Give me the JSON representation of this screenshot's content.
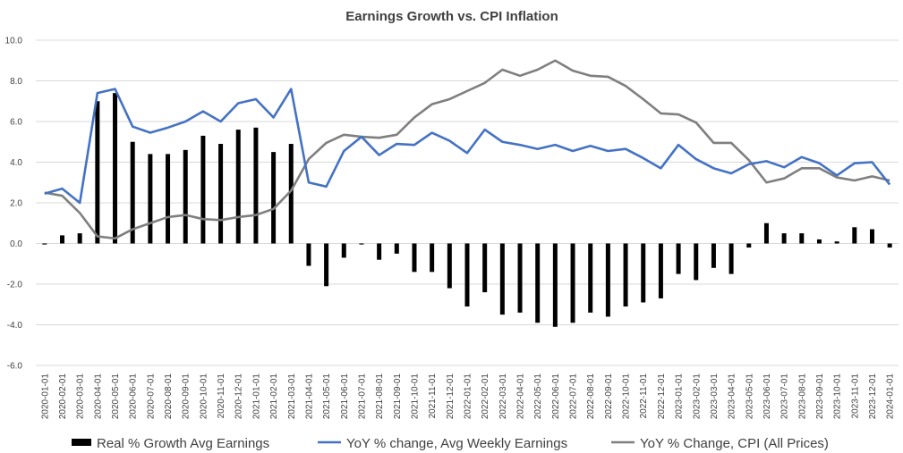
{
  "chart_data": {
    "type": "bar+line",
    "title": "Earnings Growth vs. CPI Inflation",
    "xlabel": "",
    "ylabel": "",
    "ylim": [
      -6.0,
      10.0
    ],
    "yticks": [
      "10.0",
      "8.0",
      "6.0",
      "4.0",
      "2.0",
      "0.0",
      "-2.0",
      "-4.0",
      "-6.0"
    ],
    "grid": true,
    "legend_position": "bottom",
    "categories": [
      "2020-01-01",
      "2020-02-01",
      "2020-03-01",
      "2020-04-01",
      "2020-05-01",
      "2020-06-01",
      "2020-07-01",
      "2020-08-01",
      "2020-09-01",
      "2020-10-01",
      "2020-11-01",
      "2020-12-01",
      "2021-01-01",
      "2021-02-01",
      "2021-03-01",
      "2021-04-01",
      "2021-05-01",
      "2021-06-01",
      "2021-07-01",
      "2021-08-01",
      "2021-09-01",
      "2021-10-01",
      "2021-11-01",
      "2021-12-01",
      "2022-01-01",
      "2022-02-01",
      "2022-03-01",
      "2022-04-01",
      "2022-05-01",
      "2022-06-01",
      "2022-07-01",
      "2022-08-01",
      "2022-09-01",
      "2022-10-01",
      "2022-11-01",
      "2022-12-01",
      "2023-01-01",
      "2023-02-01",
      "2023-03-01",
      "2023-04-01",
      "2023-05-01",
      "2023-06-01",
      "2023-07-01",
      "2023-08-01",
      "2023-09-01",
      "2023-10-01",
      "2023-11-01",
      "2023-12-01",
      "2024-01-01"
    ],
    "series": [
      {
        "name": "Real % Growth Avg Earnings",
        "kind": "bar",
        "color": "#000000",
        "values": [
          -0.05,
          0.4,
          0.5,
          7.0,
          7.4,
          5.0,
          4.4,
          4.4,
          4.6,
          5.3,
          4.9,
          5.6,
          5.7,
          4.5,
          4.9,
          -1.1,
          -2.1,
          -0.7,
          -0.05,
          -0.8,
          -0.5,
          -1.4,
          -1.4,
          -2.2,
          -3.1,
          -2.4,
          -3.5,
          -3.4,
          -3.9,
          -4.1,
          -3.9,
          -3.4,
          -3.6,
          -3.1,
          -2.9,
          -2.7,
          -1.5,
          -1.8,
          -1.2,
          -1.5,
          -0.2,
          1.0,
          0.5,
          0.5,
          0.2,
          0.1,
          0.8,
          0.7,
          -0.2
        ]
      },
      {
        "name": "YoY % change, Avg Weekly Earnings",
        "kind": "line",
        "color": "#4472c4",
        "values": [
          2.45,
          2.7,
          2.0,
          7.4,
          7.6,
          5.75,
          5.45,
          5.7,
          6.0,
          6.5,
          6.0,
          6.9,
          7.1,
          6.2,
          7.6,
          3.0,
          2.8,
          4.55,
          5.25,
          4.35,
          4.9,
          4.85,
          5.45,
          5.05,
          4.45,
          5.6,
          5.0,
          4.85,
          4.65,
          4.85,
          4.55,
          4.8,
          4.55,
          4.65,
          4.2,
          3.7,
          4.85,
          4.15,
          3.7,
          3.45,
          3.9,
          4.05,
          3.75,
          4.25,
          3.95,
          3.35,
          3.95,
          4.0,
          2.9
        ]
      },
      {
        "name": "YoY % Change, CPI (All Prices)",
        "kind": "line",
        "color": "#7f7f7f",
        "values": [
          2.5,
          2.35,
          1.5,
          0.35,
          0.25,
          0.7,
          1.0,
          1.3,
          1.4,
          1.2,
          1.15,
          1.3,
          1.4,
          1.7,
          2.6,
          4.15,
          4.95,
          5.35,
          5.25,
          5.2,
          5.35,
          6.2,
          6.85,
          7.1,
          7.5,
          7.9,
          8.55,
          8.25,
          8.55,
          9.0,
          8.5,
          8.25,
          8.2,
          7.75,
          7.1,
          6.4,
          6.35,
          5.95,
          4.95,
          4.95,
          4.1,
          3.0,
          3.2,
          3.7,
          3.7,
          3.25,
          3.1,
          3.3,
          3.1
        ]
      }
    ]
  }
}
